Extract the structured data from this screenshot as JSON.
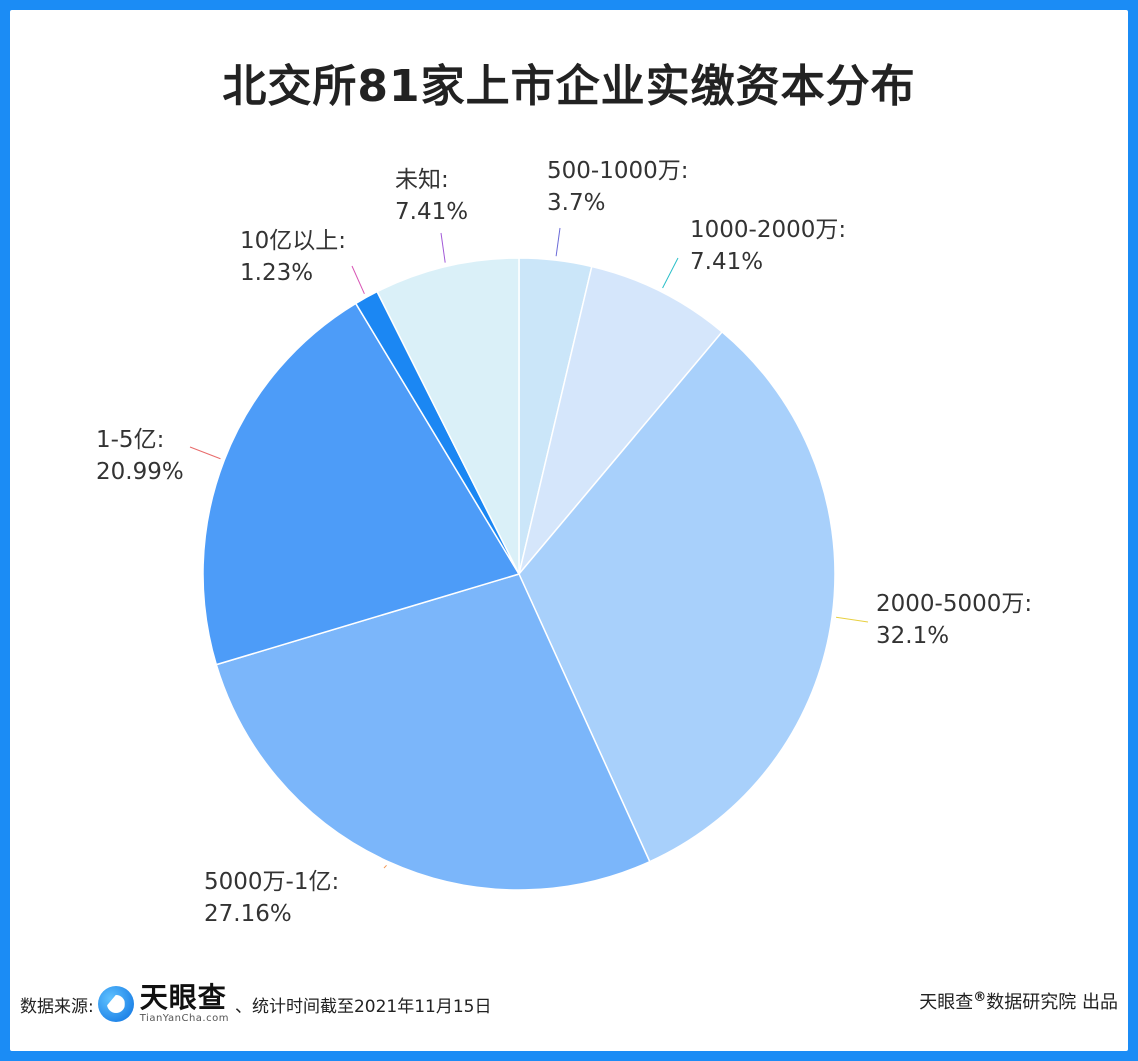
{
  "title": "北交所81家上市企业实缴资本分布",
  "chart_data": {
    "type": "pie",
    "title": "北交所81家上市企业实缴资本分布",
    "slices": [
      {
        "label": "500-1000万",
        "value": 3.7,
        "display": "3.7%",
        "color": "#cbe6f9",
        "line_color": "#6b6bd8"
      },
      {
        "label": "1000-2000万",
        "value": 7.41,
        "display": "7.41%",
        "color": "#d5e6fb",
        "line_color": "#2bbfc9"
      },
      {
        "label": "2000-5000万",
        "value": 32.1,
        "display": "32.1%",
        "color": "#a8d0fb",
        "line_color": "#e8d040"
      },
      {
        "label": "5000万-1亿",
        "value": 27.16,
        "display": "27.16%",
        "color": "#7bb6fa",
        "line_color": "#f29a5a"
      },
      {
        "label": "1-5亿",
        "value": 20.99,
        "display": "20.99%",
        "color": "#4d9cf8",
        "line_color": "#e86a6a"
      },
      {
        "label": "10亿以上",
        "value": 1.23,
        "display": "1.23%",
        "color": "#1b87f3",
        "line_color": "#d855b5"
      },
      {
        "label": "未知",
        "value": 7.41,
        "display": "7.41%",
        "color": "#daf0f8",
        "line_color": "#a25ad8"
      }
    ],
    "start_angle": "top",
    "direction": "clockwise"
  },
  "footer": {
    "source_label": "数据来源:",
    "logo_cn": "天眼查",
    "logo_en": "TianYanCha.com",
    "note": "、统计时间截至2021年11月15日",
    "credit_brand": "天眼查",
    "credit_mark": "®",
    "credit_text": "数据研究院 出品"
  }
}
